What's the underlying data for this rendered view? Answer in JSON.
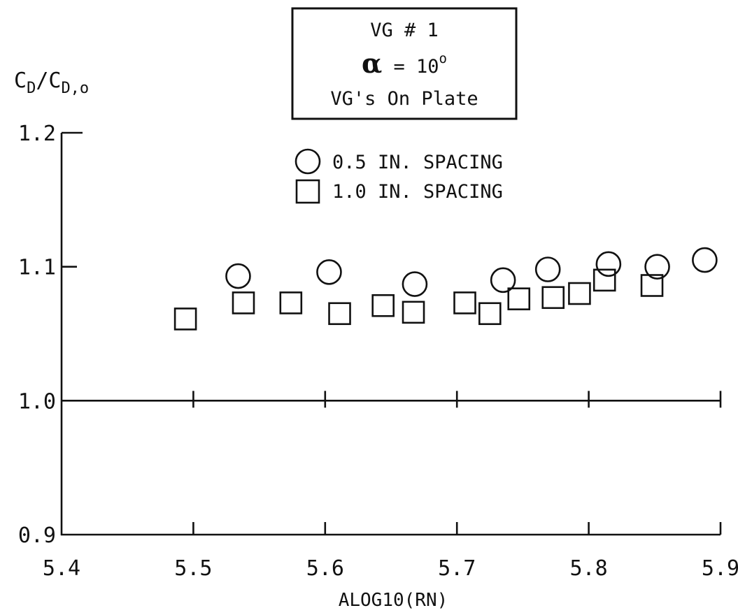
{
  "chart_data": {
    "type": "scatter",
    "xlabel": "ALOG10(RN)",
    "ylabel": {
      "main": "C",
      "sub1": "D",
      "slash": "/C",
      "sub2": "D,o"
    },
    "xlim": [
      5.4,
      5.9
    ],
    "ylim": [
      0.9,
      1.2
    ],
    "xticks": [
      5.4,
      5.5,
      5.6,
      5.7,
      5.8,
      5.9
    ],
    "xtick_labels": [
      "5.4",
      "5.5",
      "5.6",
      "5.7",
      "5.8",
      "5.9"
    ],
    "yticks": [
      0.9,
      1.0,
      1.1,
      1.2
    ],
    "ytick_labels": [
      "0.9",
      "1.0",
      "1.1",
      "1.2"
    ],
    "reference_line": 1.0,
    "title_box": {
      "line1": "VG # 1",
      "alpha_symbol": "α",
      "alpha_eq": " = 10",
      "alpha_sup": "o",
      "line3": "VG's On Plate"
    },
    "legend_position": "top-center",
    "series": [
      {
        "name": "0.5 IN. SPACING",
        "marker": "circle",
        "x": [
          5.534,
          5.603,
          5.668,
          5.735,
          5.769,
          5.815,
          5.852,
          5.888
        ],
        "y": [
          1.093,
          1.096,
          1.087,
          1.09,
          1.098,
          1.102,
          1.1,
          1.105
        ]
      },
      {
        "name": "1.0 IN. SPACING",
        "marker": "square",
        "x": [
          5.494,
          5.538,
          5.574,
          5.611,
          5.644,
          5.667,
          5.706,
          5.725,
          5.747,
          5.773,
          5.793,
          5.812,
          5.848
        ],
        "y": [
          1.061,
          1.073,
          1.073,
          1.065,
          1.071,
          1.066,
          1.073,
          1.065,
          1.076,
          1.077,
          1.08,
          1.09,
          1.086
        ]
      }
    ]
  }
}
